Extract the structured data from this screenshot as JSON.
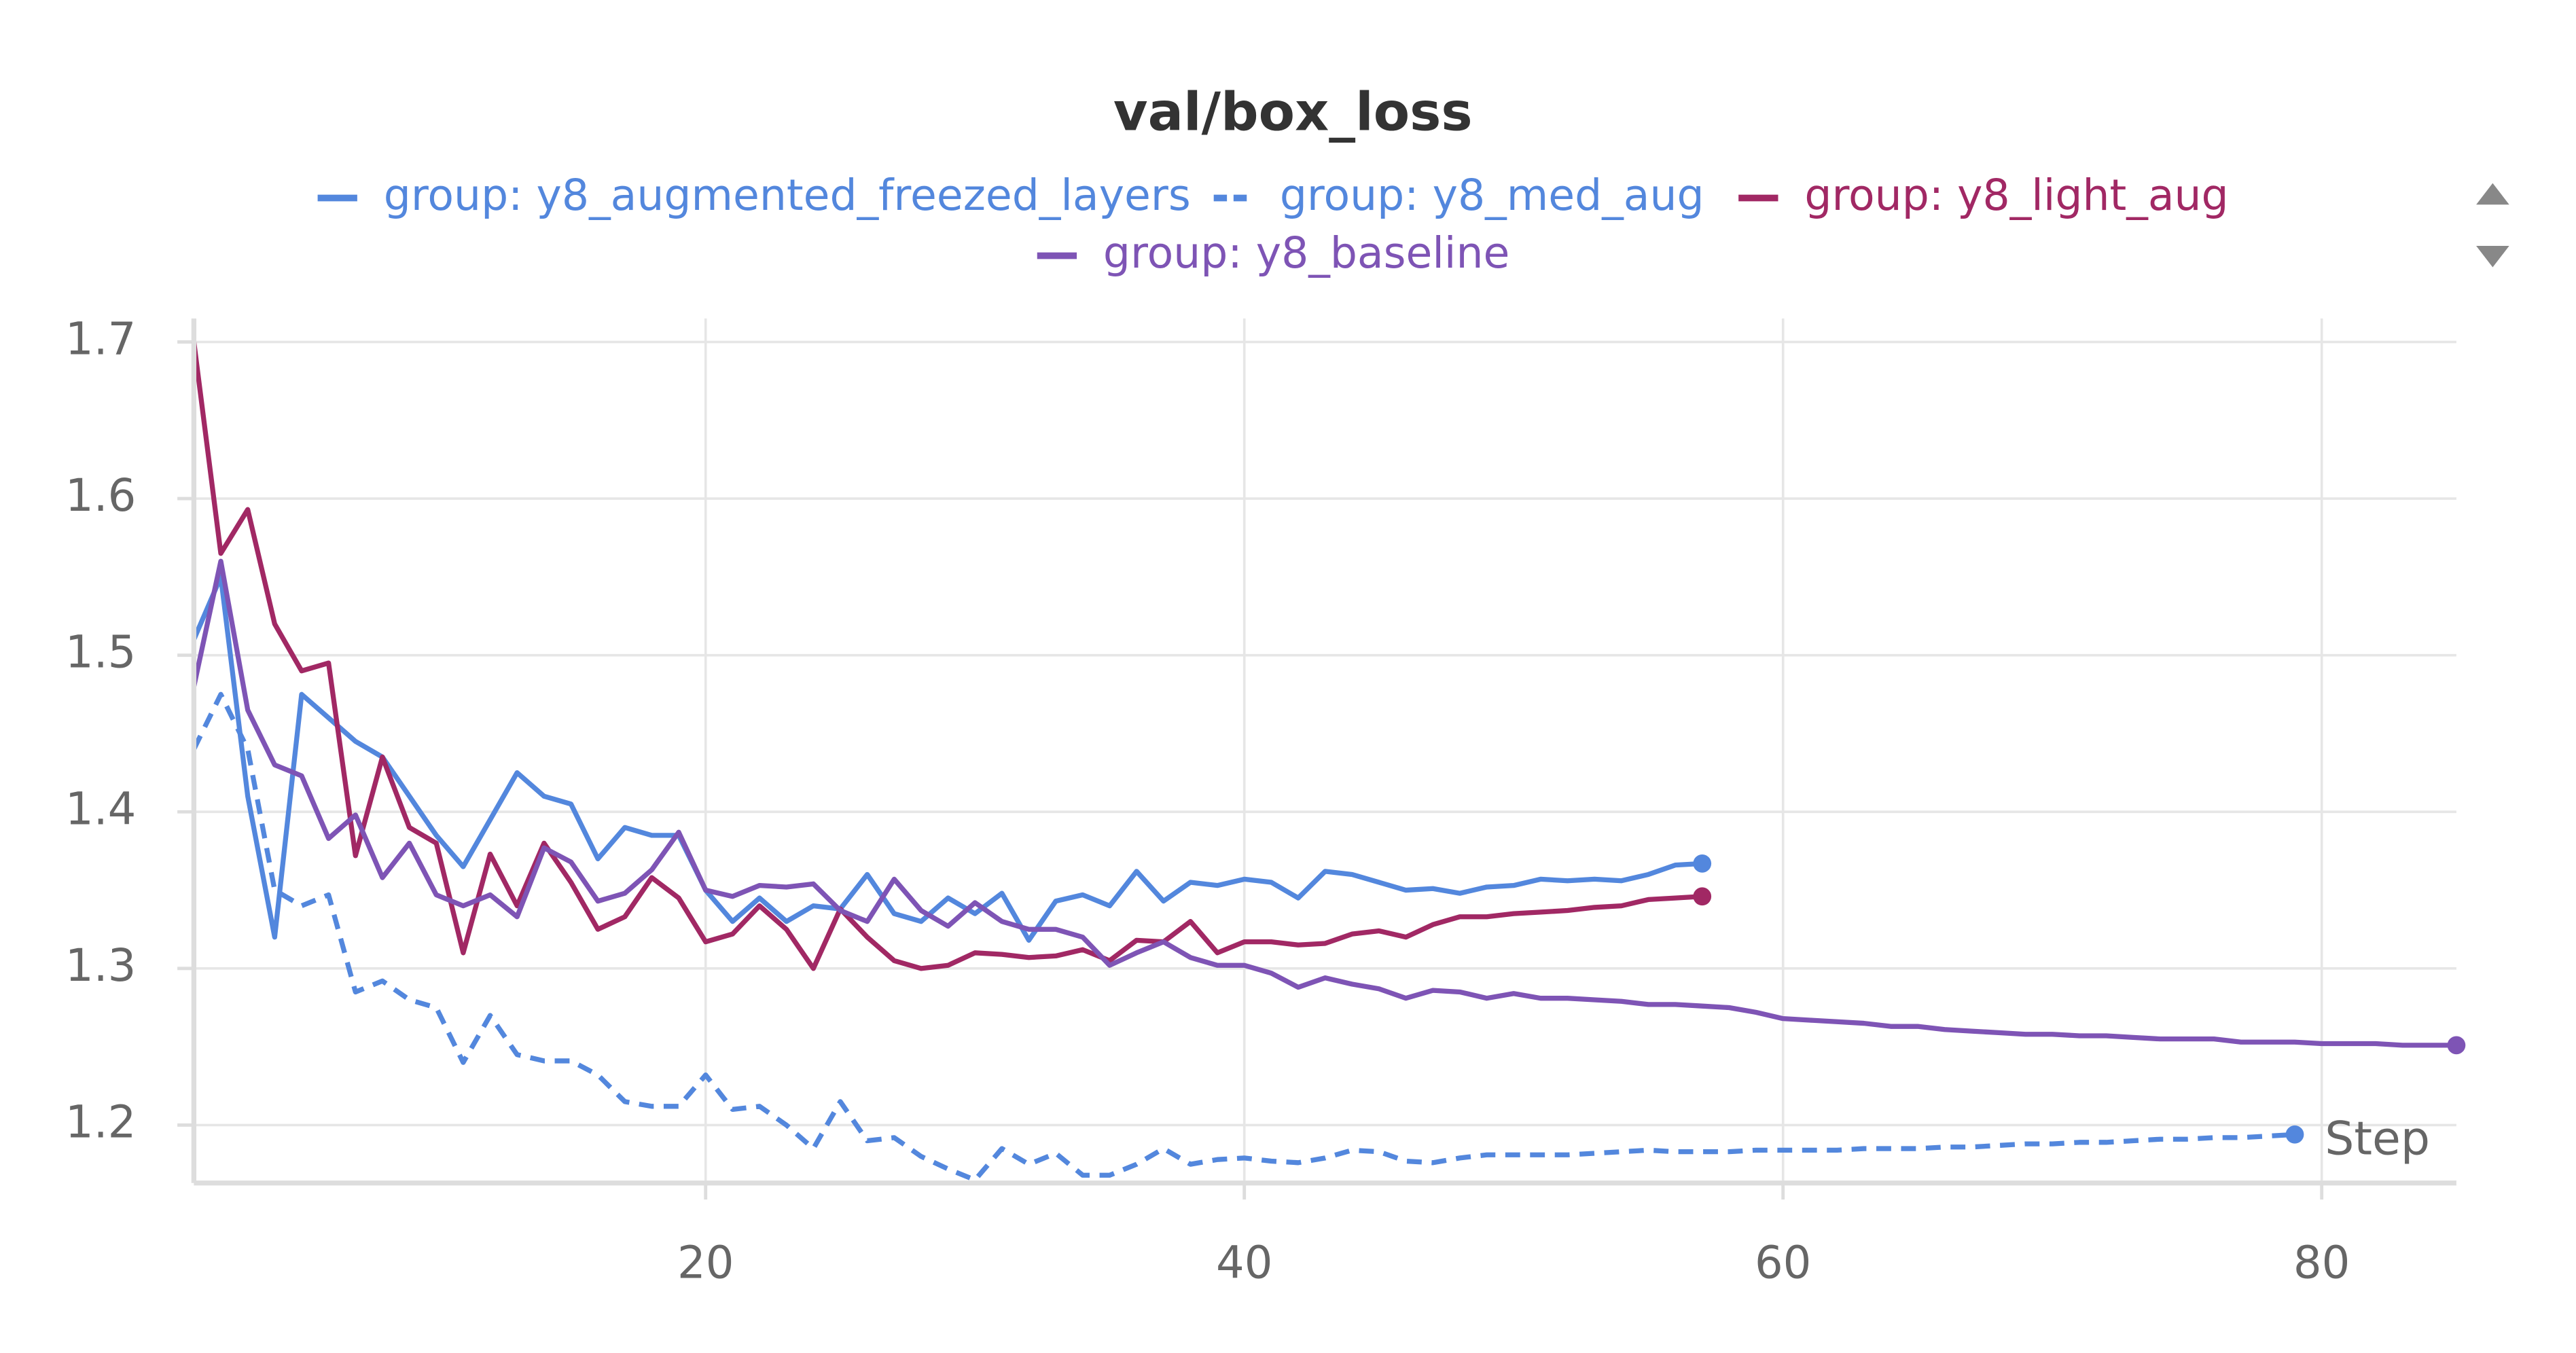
{
  "chart_data": {
    "type": "line",
    "title": "val/box_loss",
    "x_label": "Step",
    "x": [
      1,
      2,
      3,
      4,
      5,
      6,
      7,
      8,
      9,
      10,
      11,
      12,
      13,
      14,
      15,
      16,
      17,
      18,
      19,
      20,
      21,
      22,
      23,
      24,
      25,
      26,
      27,
      28,
      29,
      30,
      31,
      32,
      33,
      34,
      35,
      36,
      37,
      38,
      39,
      40,
      41,
      42,
      43,
      44,
      45,
      46,
      47,
      48,
      49,
      50,
      51,
      52,
      53,
      54,
      55,
      56,
      57,
      58,
      59,
      60,
      61,
      62,
      63,
      64,
      65,
      66,
      67,
      68,
      69,
      70,
      71,
      72,
      73,
      74,
      75,
      76,
      77,
      78,
      79,
      80,
      81,
      82,
      83,
      84,
      85
    ],
    "series": [
      {
        "name": "group: y8_augmented_freezed_layers",
        "color": "#5387dd",
        "dash": false,
        "values": [
          1.51,
          1.55,
          1.41,
          1.32,
          1.475,
          1.46,
          1.445,
          1.435,
          1.41,
          1.385,
          1.365,
          1.395,
          1.425,
          1.41,
          1.405,
          1.37,
          1.39,
          1.385,
          1.385,
          1.35,
          1.33,
          1.345,
          1.33,
          1.34,
          1.338,
          1.36,
          1.335,
          1.33,
          1.345,
          1.335,
          1.348,
          1.318,
          1.343,
          1.347,
          1.34,
          1.362,
          1.343,
          1.355,
          1.353,
          1.357,
          1.355,
          1.345,
          1.362,
          1.36,
          1.355,
          1.35,
          1.351,
          1.348,
          1.352,
          1.353,
          1.357,
          1.356,
          1.357,
          1.356,
          1.36,
          1.366,
          1.367,
          null,
          null,
          null,
          null,
          null,
          null,
          null,
          null,
          null,
          null,
          null,
          null,
          null,
          null,
          null,
          null,
          null,
          null,
          null,
          null,
          null,
          null,
          null,
          null,
          null,
          null,
          null,
          null
        ]
      },
      {
        "name": "group: y8_med_aug",
        "color": "#5387dd",
        "dash": true,
        "values": [
          1.44,
          1.475,
          1.44,
          1.35,
          1.34,
          1.347,
          1.285,
          1.292,
          1.28,
          1.275,
          1.24,
          1.27,
          1.245,
          1.241,
          1.241,
          1.232,
          1.215,
          1.212,
          1.212,
          1.232,
          1.21,
          1.212,
          1.2,
          1.185,
          1.215,
          1.19,
          1.192,
          1.18,
          1.172,
          1.165,
          1.185,
          1.175,
          1.182,
          1.168,
          1.168,
          1.175,
          1.185,
          1.175,
          1.178,
          1.179,
          1.177,
          1.176,
          1.179,
          1.184,
          1.183,
          1.177,
          1.176,
          1.179,
          1.181,
          1.181,
          1.181,
          1.181,
          1.182,
          1.183,
          1.184,
          1.183,
          1.183,
          1.183,
          1.184,
          1.184,
          1.184,
          1.184,
          1.185,
          1.185,
          1.185,
          1.186,
          1.186,
          1.187,
          1.188,
          1.188,
          1.189,
          1.189,
          1.19,
          1.191,
          1.191,
          1.192,
          1.192,
          1.193,
          1.194,
          null,
          null,
          null,
          null,
          null,
          null
        ]
      },
      {
        "name": "group: y8_light_aug",
        "color": "#a12864",
        "dash": false,
        "values": [
          1.7,
          1.565,
          1.593,
          1.52,
          1.49,
          1.495,
          1.372,
          1.435,
          1.39,
          1.38,
          1.31,
          1.373,
          1.34,
          1.38,
          1.355,
          1.325,
          1.333,
          1.358,
          1.345,
          1.317,
          1.322,
          1.34,
          1.325,
          1.3,
          1.338,
          1.32,
          1.305,
          1.3,
          1.302,
          1.31,
          1.309,
          1.307,
          1.308,
          1.312,
          1.305,
          1.318,
          1.317,
          1.33,
          1.31,
          1.317,
          1.317,
          1.315,
          1.316,
          1.322,
          1.324,
          1.32,
          1.328,
          1.333,
          1.333,
          1.335,
          1.336,
          1.337,
          1.339,
          1.34,
          1.344,
          1.345,
          1.346,
          null,
          null,
          null,
          null,
          null,
          null,
          null,
          null,
          null,
          null,
          null,
          null,
          null,
          null,
          null,
          null,
          null,
          null,
          null,
          null,
          null,
          null,
          null,
          null,
          null,
          null,
          null,
          null
        ]
      },
      {
        "name": "group: y8_baseline",
        "color": "#7e54b5",
        "dash": false,
        "values": [
          1.48,
          1.56,
          1.465,
          1.43,
          1.423,
          1.383,
          1.398,
          1.358,
          1.38,
          1.347,
          1.34,
          1.347,
          1.333,
          1.377,
          1.368,
          1.343,
          1.348,
          1.363,
          1.387,
          1.35,
          1.346,
          1.353,
          1.352,
          1.354,
          1.337,
          1.33,
          1.357,
          1.337,
          1.327,
          1.342,
          1.33,
          1.325,
          1.325,
          1.32,
          1.302,
          1.31,
          1.317,
          1.307,
          1.302,
          1.302,
          1.297,
          1.288,
          1.294,
          1.29,
          1.287,
          1.281,
          1.286,
          1.285,
          1.281,
          1.284,
          1.281,
          1.281,
          1.28,
          1.279,
          1.277,
          1.277,
          1.276,
          1.275,
          1.272,
          1.268,
          1.267,
          1.266,
          1.265,
          1.263,
          1.263,
          1.261,
          1.26,
          1.259,
          1.258,
          1.258,
          1.257,
          1.257,
          1.256,
          1.255,
          1.255,
          1.255,
          1.253,
          1.253,
          1.253,
          1.252,
          1.252,
          1.252,
          1.251,
          1.251,
          1.251
        ]
      }
    ],
    "xlim": [
      1,
      85
    ],
    "xticks": [
      20,
      40,
      60,
      80
    ],
    "ylim": [
      1.163,
      1.715
    ],
    "yticks": [
      1.2,
      1.3,
      1.4,
      1.5,
      1.6,
      1.7
    ],
    "grid": true
  }
}
